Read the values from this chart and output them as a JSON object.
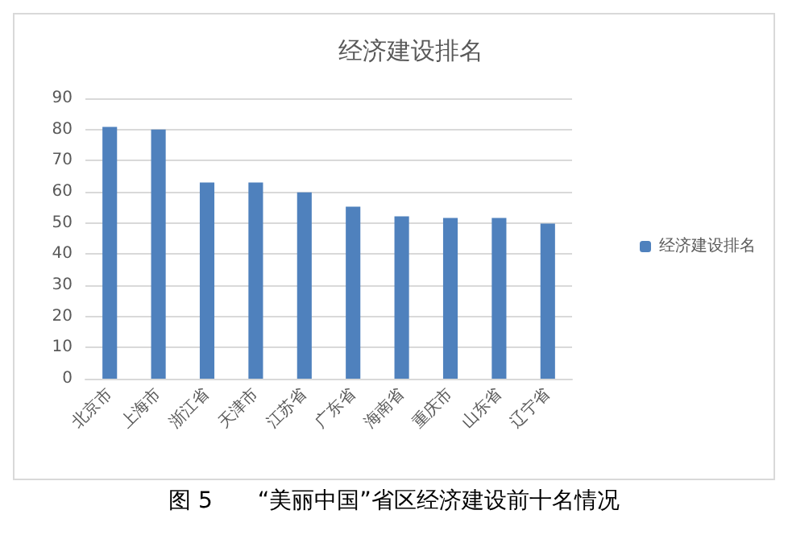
{
  "chart_data": {
    "type": "bar",
    "title": "经济建设排名",
    "categories": [
      "北京市",
      "上海市",
      "浙江省",
      "天津市",
      "江苏省",
      "广东省",
      "海南省",
      "重庆市",
      "山东省",
      "辽宁省"
    ],
    "series": [
      {
        "name": "经济建设排名",
        "color": "#4f81bd",
        "values": [
          80.8,
          80,
          63,
          63,
          59.8,
          55.2,
          52.1,
          51.6,
          51.6,
          49.8
        ]
      }
    ],
    "ylim": [
      0,
      90
    ],
    "yticks": [
      0,
      10,
      20,
      30,
      40,
      50,
      60,
      70,
      80,
      90
    ],
    "grid": "y",
    "legend": "right",
    "annotations": [
      "图 5　　“美丽中国”省区经济建设前十名情况"
    ]
  }
}
